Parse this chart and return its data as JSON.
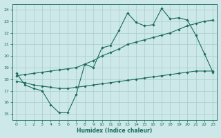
{
  "xlabel": "Humidex (Indice chaleur)",
  "ylabel": "",
  "bg_color": "#cce8e8",
  "grid_color": "#aacccc",
  "line_color": "#1a6b5a",
  "xlim": [
    -0.5,
    23.5
  ],
  "ylim": [
    14.5,
    24.5
  ],
  "xticks": [
    0,
    1,
    2,
    3,
    4,
    5,
    6,
    7,
    8,
    9,
    10,
    11,
    12,
    13,
    14,
    15,
    16,
    17,
    18,
    19,
    20,
    21,
    22,
    23
  ],
  "yticks": [
    15,
    16,
    17,
    18,
    19,
    20,
    21,
    22,
    23,
    24
  ],
  "line1_x": [
    0,
    1,
    2,
    3,
    4,
    5,
    6,
    7,
    8,
    9,
    10,
    11,
    12,
    13,
    14,
    15,
    16,
    17,
    18,
    19,
    20,
    21,
    22,
    23
  ],
  "line1_y": [
    18.5,
    17.5,
    17.2,
    17.0,
    15.8,
    15.1,
    15.1,
    16.7,
    19.3,
    19.0,
    20.7,
    20.9,
    22.2,
    23.7,
    22.9,
    22.6,
    22.7,
    24.1,
    23.2,
    23.3,
    23.1,
    21.8,
    20.2,
    18.6
  ],
  "line2_x": [
    0,
    1,
    2,
    3,
    4,
    5,
    6,
    7,
    8,
    9,
    10,
    11,
    12,
    13,
    14,
    15,
    16,
    17,
    18,
    19,
    20,
    21,
    22,
    23
  ],
  "line2_y": [
    18.3,
    18.4,
    18.5,
    18.6,
    18.7,
    18.8,
    18.9,
    19.0,
    19.3,
    19.6,
    20.0,
    20.3,
    20.6,
    21.0,
    21.2,
    21.4,
    21.6,
    21.8,
    22.0,
    22.3,
    22.6,
    22.8,
    23.0,
    23.1
  ],
  "line3_x": [
    0,
    1,
    2,
    3,
    4,
    5,
    6,
    7,
    8,
    9,
    10,
    11,
    12,
    13,
    14,
    15,
    16,
    17,
    18,
    19,
    20,
    21,
    22,
    23
  ],
  "line3_y": [
    17.8,
    17.7,
    17.5,
    17.4,
    17.3,
    17.2,
    17.2,
    17.3,
    17.4,
    17.5,
    17.6,
    17.7,
    17.8,
    17.9,
    18.0,
    18.1,
    18.2,
    18.3,
    18.4,
    18.5,
    18.6,
    18.7,
    18.7,
    18.7
  ]
}
